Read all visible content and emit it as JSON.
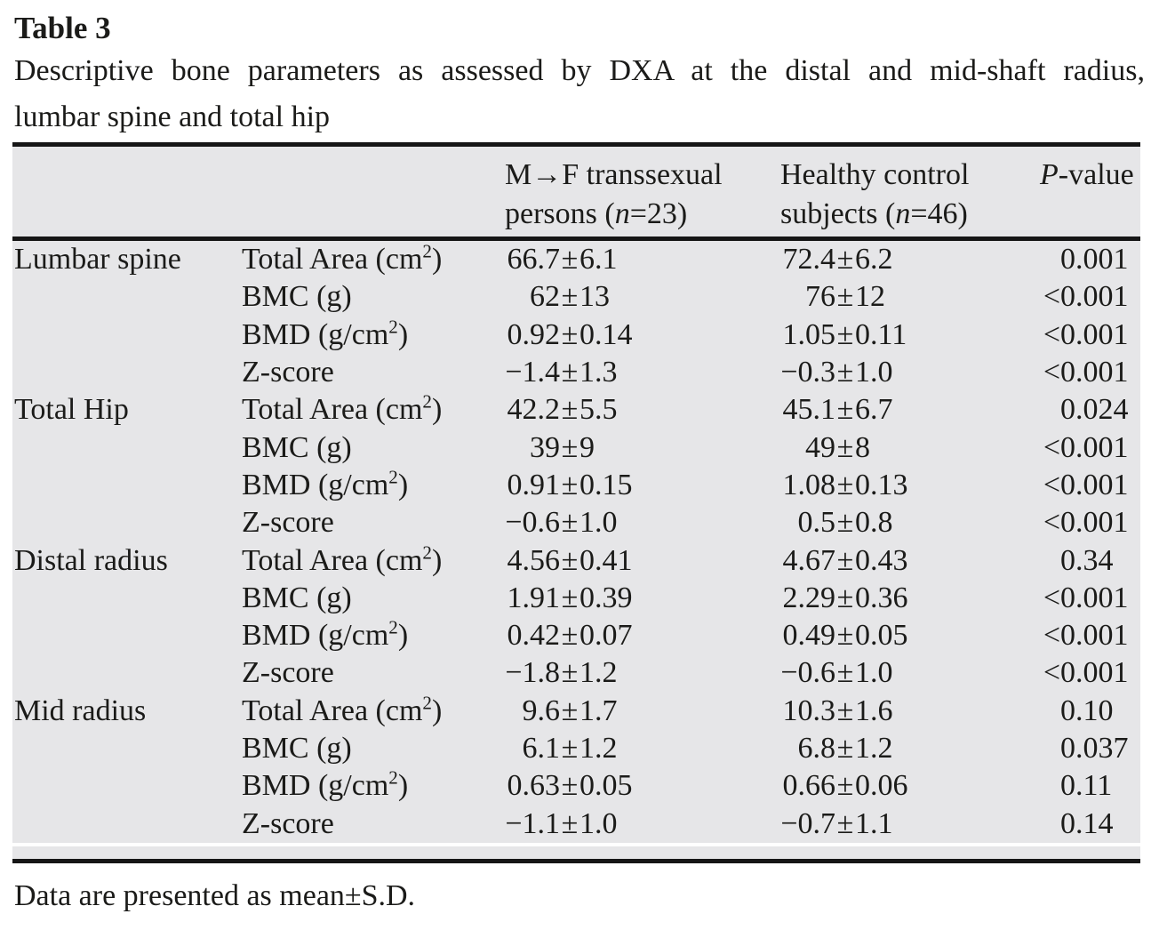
{
  "title": "Table 3",
  "caption": {
    "line1": "Descriptive bone parameters as assessed by DXA at the distal and mid-shaft radius,",
    "line2": "lumbar spine and total hip"
  },
  "columns": {
    "group1": {
      "line1": "M→F transsexual",
      "line2_pre": "persons (",
      "line2_var": "n",
      "line2_post": "=23)"
    },
    "group2": {
      "line1": "Healthy control",
      "line2_pre": "subjects (",
      "line2_var": "n",
      "line2_post": "=46)"
    },
    "pvalue": {
      "var": "P",
      "rest": "-value"
    }
  },
  "rows": [
    {
      "region": "Lumbar spine",
      "param": "Total Area (cm^2)",
      "g1": "66.7±6.1",
      "g2": "72.4±6.2",
      "p": "0.001"
    },
    {
      "region": "",
      "param": "BMC (g)",
      "g1": "62±13",
      "g2": "76±12",
      "p": "<0.001"
    },
    {
      "region": "",
      "param": "BMD (g/cm^2)",
      "g1": "0.92±0.14",
      "g2": "1.05±0.11",
      "p": "<0.001"
    },
    {
      "region": "",
      "param": "Z-score",
      "g1": "−1.4±1.3",
      "g2": "−0.3±1.0",
      "p": "<0.001"
    },
    {
      "region": "Total Hip",
      "param": "Total Area (cm^2)",
      "g1": "42.2±5.5",
      "g2": "45.1±6.7",
      "p": "0.024"
    },
    {
      "region": "",
      "param": "BMC (g)",
      "g1": "39±9",
      "g2": "49±8",
      "p": "<0.001"
    },
    {
      "region": "",
      "param": "BMD (g/cm^2)",
      "g1": "0.91±0.15",
      "g2": "1.08±0.13",
      "p": "<0.001"
    },
    {
      "region": "",
      "param": "Z-score",
      "g1": "−0.6±1.0",
      "g2": "0.5±0.8",
      "p": "<0.001"
    },
    {
      "region": "Distal radius",
      "param": "Total Area (cm^2)",
      "g1": "4.56±0.41",
      "g2": "4.67±0.43",
      "p": "0.34"
    },
    {
      "region": "",
      "param": "BMC (g)",
      "g1": "1.91±0.39",
      "g2": "2.29±0.36",
      "p": "<0.001"
    },
    {
      "region": "",
      "param": "BMD (g/cm^2)",
      "g1": "0.42±0.07",
      "g2": "0.49±0.05",
      "p": "<0.001"
    },
    {
      "region": "",
      "param": "Z-score",
      "g1": "−1.8±1.2",
      "g2": "−0.6±1.0",
      "p": "<0.001"
    },
    {
      "region": "Mid radius",
      "param": "Total Area (cm^2)",
      "g1": "9.6±1.7",
      "g2": "10.3±1.6",
      "p": "0.10"
    },
    {
      "region": "",
      "param": "BMC (g)",
      "g1": "6.1±1.2",
      "g2": "6.8±1.2",
      "p": "0.037"
    },
    {
      "region": "",
      "param": "BMD (g/cm^2)",
      "g1": "0.63±0.05",
      "g2": "0.66±0.06",
      "p": "0.11"
    },
    {
      "region": "",
      "param": "Z-score",
      "g1": "−1.1±1.0",
      "g2": "−0.7±1.1",
      "p": "0.14"
    }
  ],
  "footnote": "Data are presented as mean±S.D.",
  "colors": {
    "table_background": "#e6e6e8",
    "text": "#1b1b19",
    "rule": "#161616"
  }
}
